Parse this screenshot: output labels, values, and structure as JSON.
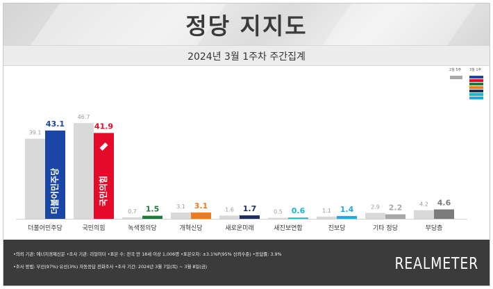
{
  "header": {
    "title": "정당 지지도",
    "subtitle": "2024년 3월 1주차 주간집계"
  },
  "legend": {
    "previous_label": "2월 5주",
    "current_label": "3월 1주"
  },
  "colors": {
    "previous": "#d9d9d9",
    "parties": [
      "#1a47a6",
      "#e50a2a",
      "#1e7b3a",
      "#f07a1e",
      "#1f2f5e",
      "#17b9c6",
      "#24a8de",
      "#a8a8a8",
      "#7b7b7b"
    ]
  },
  "chart_data": {
    "type": "bar",
    "categories": [
      "더불어민주당",
      "국민의힘",
      "녹색정의당",
      "개혁신당",
      "새로운미래",
      "새진보연합",
      "진보당",
      "기타 정당",
      "무당층"
    ],
    "series": [
      {
        "name": "2월 5주",
        "values": [
          39.1,
          46.7,
          0.7,
          3.1,
          1.6,
          0.5,
          1.1,
          2.9,
          4.2
        ]
      },
      {
        "name": "3월 1주",
        "values": [
          43.1,
          41.9,
          1.5,
          3.1,
          1.7,
          0.6,
          1.4,
          2.2,
          4.6
        ]
      }
    ],
    "previous_labels": [
      "39.1",
      "46.7",
      "0.7",
      "3.1",
      "1.6",
      "0.5",
      "1.1",
      "2.9",
      "4.2"
    ],
    "current_labels": [
      "43.1",
      "41.9",
      "1.5",
      "3.1",
      "1.7",
      "0.6",
      "1.4",
      "2.2",
      "4.6"
    ],
    "bar_logos": [
      "더불어민주당",
      "국민의힘"
    ],
    "ylim": [
      0,
      50
    ],
    "grid": false
  },
  "footer": {
    "line1": "•의뢰 기관: 에너지경제신문  •조사 기관: 리얼미터  •표본 수: 전국 만 18세 이상 1,006명  •표본오차: ±3.1%P(95% 신뢰수준)  •응답률: 3.9%",
    "line2": "•조사 방법: 무선(97%)·유선(3%) 자동응답 전화조사  •조사 기간: 2024년 3월 7일(목) ~ 3월 8일(금)",
    "brand": "REALMETER"
  }
}
